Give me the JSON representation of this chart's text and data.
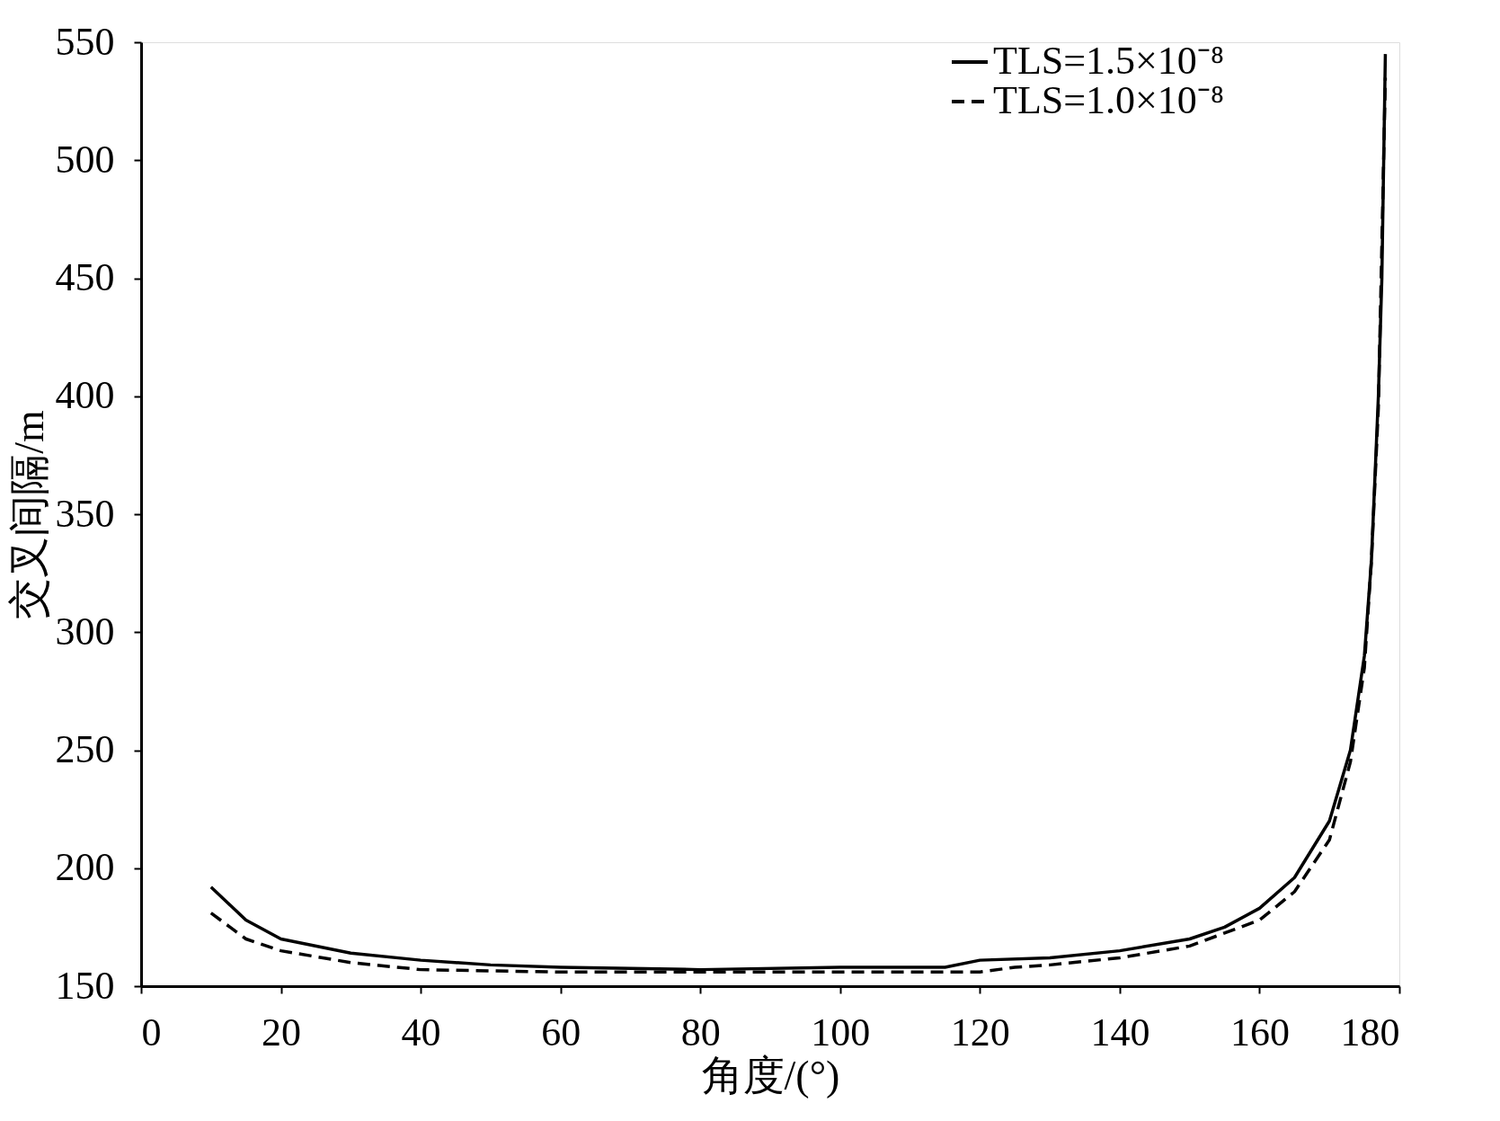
{
  "chart_data": {
    "type": "line",
    "xlabel": "角度/(°)",
    "ylabel": "交叉间隔/m",
    "xlim": [
      0,
      180
    ],
    "xticks": [
      0,
      20,
      40,
      60,
      80,
      100,
      120,
      140,
      160,
      180
    ],
    "ylim": [
      150,
      550
    ],
    "yticks": [
      150,
      200,
      250,
      300,
      350,
      400,
      450,
      500,
      550
    ],
    "grid": false,
    "legend": "top right",
    "marker": "none",
    "series": [
      {
        "name": "TLS=1.5×10⁻⁸",
        "color": "#000000",
        "line_style": "solid",
        "x": [
          10,
          15,
          20,
          30,
          40,
          50,
          60,
          80,
          100,
          115,
          120,
          130,
          140,
          150,
          155,
          160,
          165,
          170,
          173,
          175,
          176,
          177,
          177.5,
          178
        ],
        "values": [
          192,
          178,
          170,
          164,
          161,
          159,
          158,
          157,
          158,
          158,
          161,
          162,
          165,
          170,
          175,
          183,
          196,
          220,
          250,
          290,
          330,
          400,
          450,
          545
        ]
      },
      {
        "name": "TLS=1.0×10⁻⁸",
        "color": "#000000",
        "line_style": "dashed",
        "x": [
          10,
          15,
          20,
          30,
          40,
          60,
          80,
          100,
          120,
          125,
          130,
          140,
          150,
          160,
          165,
          170,
          173,
          175,
          176,
          177,
          178
        ],
        "values": [
          181,
          170,
          165,
          160,
          157,
          156,
          156,
          156,
          156,
          158,
          159,
          162,
          167,
          178,
          190,
          212,
          245,
          285,
          330,
          395,
          535
        ]
      }
    ]
  }
}
